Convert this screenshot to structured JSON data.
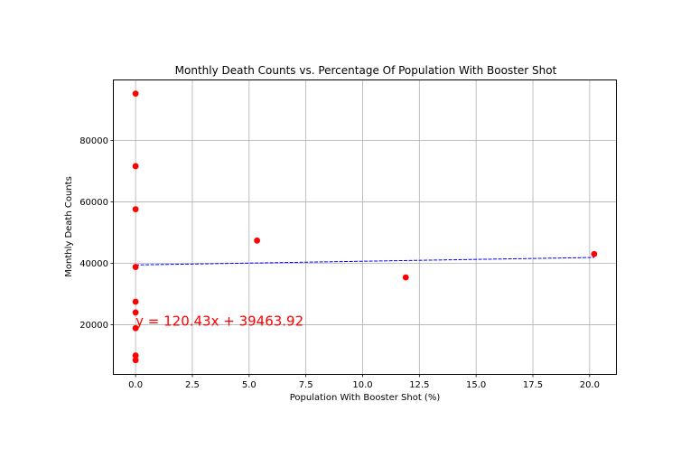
{
  "chart_data": {
    "type": "scatter",
    "title": "Monthly Death Counts vs. Percentage Of Population With Booster Shot",
    "xlabel": "Population With Booster Shot (%)",
    "ylabel": "Monthly Death Counts",
    "xlim": [
      -0.96,
      21.16
    ],
    "ylim": [
      4000,
      99500
    ],
    "xticks": [
      0.0,
      2.5,
      5.0,
      7.5,
      10.0,
      12.5,
      15.0,
      17.5,
      20.0
    ],
    "xtick_labels": [
      "0.0",
      "2.5",
      "5.0",
      "7.5",
      "10.0",
      "12.5",
      "15.0",
      "17.5",
      "20.0"
    ],
    "yticks": [
      20000,
      40000,
      60000,
      80000
    ],
    "ytick_labels": [
      "20000",
      "40000",
      "60000",
      "80000"
    ],
    "grid": true,
    "point_color": "#ff0000",
    "line_color": "#0000ff",
    "points": [
      {
        "x": 0.0,
        "y": 95200
      },
      {
        "x": 0.0,
        "y": 71600
      },
      {
        "x": 0.0,
        "y": 57600
      },
      {
        "x": 0.0,
        "y": 38800
      },
      {
        "x": 0.0,
        "y": 27500
      },
      {
        "x": 0.0,
        "y": 24000
      },
      {
        "x": 0.0,
        "y": 18900
      },
      {
        "x": 0.0,
        "y": 10000
      },
      {
        "x": 0.0,
        "y": 8500
      },
      {
        "x": 5.35,
        "y": 47400
      },
      {
        "x": 11.9,
        "y": 35400
      },
      {
        "x": 20.2,
        "y": 43000
      }
    ],
    "regression": {
      "slope": 120.43,
      "intercept": 39463.92,
      "x_range": [
        0.0,
        20.2
      ],
      "equation_label": "y = 120.43x + 39463.92",
      "label_anchor": {
        "x": 0.0,
        "y": 20000
      }
    }
  }
}
